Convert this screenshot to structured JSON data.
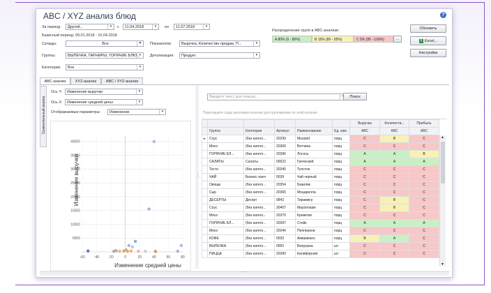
{
  "window": {
    "title": "ABC / XYZ анализ блюд",
    "help_icon": "question-icon"
  },
  "filters": {
    "period_label": "За период",
    "period_value": "Другой...",
    "from_label": "с",
    "from_date": "11.04.2018",
    "to_label": "по",
    "to_date": "11.07.2018",
    "base_period": "Базисный период: 09.01.2018 - 10.04.2018",
    "warehouses_label": "Склады:",
    "warehouses_value": "Все",
    "groups_label": "Группы:",
    "groups_value": "ВЫПЕЧКА, ГАРНИРЫ, ГОРЯЧИЕ БЛЮ...",
    "categories_label": "Категории:",
    "categories_value": "Все",
    "indicators_label": "Показатели:",
    "indicators_value": "Выручка, Количество продаж, П...",
    "detail_label": "Детализация:",
    "detail_value": "Продукт"
  },
  "distribution": {
    "label": "Распределение групп в ABC-анализе:",
    "a": "A 80% (0 - 80%)",
    "b": "B 15% (80 - 95%)",
    "c": "C 5% (95 - 100%)",
    "more": "...",
    "colors": {
      "a": "#c9efc4",
      "b": "#f8f1b6",
      "c": "#f8c7c7"
    }
  },
  "actions": {
    "refresh": "Обновить",
    "excel": "Excel...",
    "settings": "Настройки"
  },
  "tabs": [
    "ABC-анализ",
    "XYZ-анализ",
    "ABC / XYZ-анализ"
  ],
  "side_tab": "Сравнительный анализ",
  "chart_panel": {
    "axis_y_label": "Ось Y:",
    "axis_y_value": "Изменение выручки",
    "axis_x_label": "Ось X:",
    "axis_x_value": "Изменение средней цены",
    "display_label": "Отображаемые параметры:",
    "display_value": "Изменение"
  },
  "chart_data": {
    "type": "scatter",
    "xlabel": "Изменение средней цены",
    "ylabel": "Изменение выручки",
    "xlim": [
      -60,
      80
    ],
    "ylim": [
      0,
      42000
    ],
    "x_ticks": [
      -60,
      -40,
      -20,
      0,
      20,
      40,
      60,
      80
    ],
    "y_ticks": [
      5000,
      10000,
      15000,
      20000,
      25000,
      30000,
      35000,
      40000
    ],
    "grid": true,
    "points": [
      {
        "x": 40,
        "y": 40000,
        "color": "#b8b8e6"
      },
      {
        "x": 33,
        "y": 15500,
        "color": "#9fb5e6"
      },
      {
        "x": 14,
        "y": 3800,
        "color": "#8fa8e8"
      },
      {
        "x": 78,
        "y": 2300,
        "color": "#a8b7e8"
      },
      {
        "x": 5,
        "y": 2300,
        "color": "#a9b6d6"
      },
      {
        "x": 10,
        "y": 1800,
        "color": "#c2c8d9"
      },
      {
        "x": 1,
        "y": 600,
        "color": "#9aa0b0"
      },
      {
        "x": 3,
        "y": 200,
        "color": "#f3a65a"
      },
      {
        "x": -2,
        "y": 300,
        "color": "#e8a060"
      },
      {
        "x": -8,
        "y": 200,
        "color": "#b9c0cf"
      },
      {
        "x": -13,
        "y": 400,
        "color": "#d4a048"
      },
      {
        "x": -16,
        "y": 200,
        "color": "#9fa8be"
      },
      {
        "x": 8,
        "y": 300,
        "color": "#f4b080"
      },
      {
        "x": 18,
        "y": 200,
        "color": "#f0b7a0"
      },
      {
        "x": -52,
        "y": 300,
        "color": "#5b7fbf"
      },
      {
        "x": 28,
        "y": 200,
        "color": "#c7cce0"
      },
      {
        "x": 42,
        "y": 150,
        "color": "#f08a60"
      },
      {
        "x": 73,
        "y": 200,
        "color": "#b8a8d8"
      }
    ]
  },
  "grid_panel": {
    "search_placeholder": "Введите текст для поиска...",
    "search_button": "Поиск",
    "group_hint": "Перетащите сюда заголовок колонки для группировки по этой колонке",
    "group_headers": [
      "Выручка",
      "Количеств...",
      "Прибыль"
    ],
    "columns": [
      "Группа",
      "Категория",
      "Артикул",
      "Наименование",
      "Ед. изм.",
      "ABC",
      "ABC",
      "ABC"
    ],
    "rows": [
      {
        "group": "Соус",
        "category": "(без катего...",
        "article": "20299",
        "name": "Mustard",
        "unit": "порц",
        "r": "C",
        "q": "B",
        "p": "C"
      },
      {
        "group": "Мясо",
        "category": "(без катего...",
        "article": "20369",
        "name": "Ветчина",
        "unit": "порц",
        "r": "C",
        "q": "C",
        "p": "C"
      },
      {
        "group": "ГОРЯЧИЕ БЛ...",
        "category": "(без катего...",
        "article": "20396",
        "name": "Лосось",
        "unit": "порц",
        "r": "A",
        "q": "A",
        "p": "B"
      },
      {
        "group": "САЛАТЫ",
        "category": "Салаты",
        "article": "00022",
        "name": "Греческий",
        "unit": "порц",
        "r": "A",
        "q": "A",
        "p": "A"
      },
      {
        "group": "Тесто",
        "category": "(без катего...",
        "article": "20345",
        "name": "Толстое",
        "unit": "порц",
        "r": "C",
        "q": "C",
        "p": "C"
      },
      {
        "group": "ЧАЙ",
        "category": "Бизнес-ланч",
        "article": "0039",
        "name": "Чай черный",
        "unit": "порц",
        "r": "C",
        "q": "C",
        "p": "C"
      },
      {
        "group": "Овощи",
        "category": "(без катего...",
        "article": "20354",
        "name": "Базилик",
        "unit": "порц",
        "r": "C",
        "q": "C",
        "p": "C"
      },
      {
        "group": "Сыр",
        "category": "(без катего...",
        "article": "20365",
        "name": "Моцарелла",
        "unit": "порц",
        "r": "C",
        "q": "C",
        "p": "C"
      },
      {
        "group": "ДЕСЕРТЫ",
        "category": "Десерт",
        "article": "0843",
        "name": "Тирамису",
        "unit": "порц",
        "r": "C",
        "q": "B",
        "p": "C"
      },
      {
        "group": "Соус",
        "category": "(без катего...",
        "article": "30407",
        "name": "Mayonnaise",
        "unit": "порц",
        "r": "C",
        "q": "B",
        "p": "C"
      },
      {
        "group": "Мясо",
        "category": "(без катего...",
        "article": "20370",
        "name": "Креветки",
        "unit": "порц",
        "r": "C",
        "q": "C",
        "p": "C"
      },
      {
        "group": "ГОРЯЧИЕ БЛ...",
        "category": "(без катего...",
        "article": "20397",
        "name": "Стейк",
        "unit": "порц",
        "r": "A",
        "q": "A",
        "p": "A"
      },
      {
        "group": "Мясо",
        "category": "(без катего...",
        "article": "20349",
        "name": "Пепперони",
        "unit": "порц",
        "r": "C",
        "q": "C",
        "p": "C"
      },
      {
        "group": "КОФЕ",
        "category": "(без катего...",
        "article": "0033",
        "name": "Американо",
        "unit": "порц",
        "r": "B",
        "q": "A",
        "p": "C"
      },
      {
        "group": "ВЫПЕЧКА",
        "category": "(без катего...",
        "article": "0992",
        "name": "Ватрушка",
        "unit": "шт",
        "r": "C",
        "q": "C",
        "p": "C"
      },
      {
        "group": "ПИЦЦА",
        "category": "(без катего...",
        "article": "20390",
        "name": "Калифорния",
        "unit": "шт",
        "r": "C",
        "q": "C",
        "p": "C"
      }
    ]
  }
}
